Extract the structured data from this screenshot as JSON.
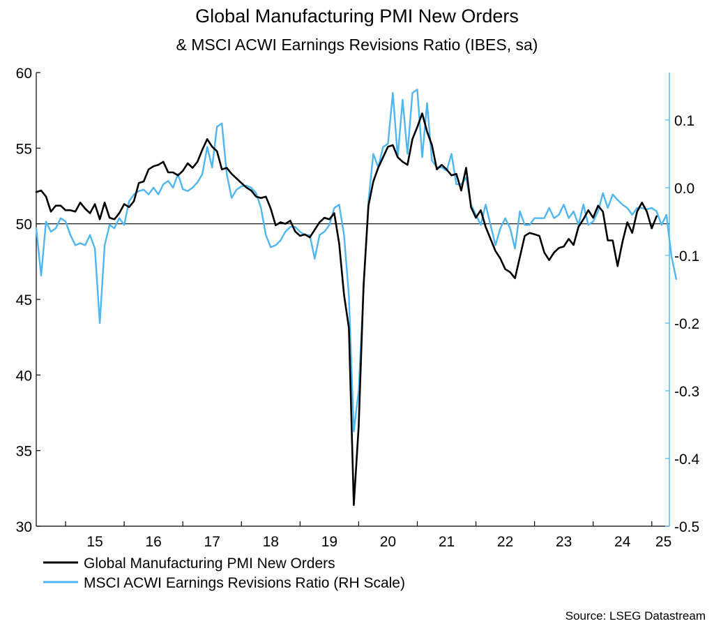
{
  "chart_data": {
    "type": "line",
    "title": "Global Manufacturing PMI New Orders",
    "subtitle": "& MSCI ACWI Earnings Revisions Ratio (IBES, sa)",
    "source": "Source: LSEG Datastream",
    "x_range": [
      2014.5,
      2025.3
    ],
    "x_ticks": [
      {
        "label": "15",
        "x": 2015.5
      },
      {
        "label": "16",
        "x": 2016.5
      },
      {
        "label": "17",
        "x": 2017.5
      },
      {
        "label": "18",
        "x": 2018.5
      },
      {
        "label": "19",
        "x": 2019.5
      },
      {
        "label": "20",
        "x": 2020.5
      },
      {
        "label": "21",
        "x": 2021.5
      },
      {
        "label": "22",
        "x": 2022.5
      },
      {
        "label": "23",
        "x": 2023.5
      },
      {
        "label": "24",
        "x": 2024.5
      },
      {
        "label": "25",
        "x": 2025.2
      }
    ],
    "x_boundaries": [
      2015,
      2016,
      2017,
      2018,
      2019,
      2020,
      2021,
      2022,
      2023,
      2024,
      2025
    ],
    "y_left": {
      "min": 30,
      "max": 60,
      "ticks": [
        "30",
        "35",
        "40",
        "45",
        "50",
        "55",
        "60"
      ]
    },
    "y_right": {
      "min": -0.5,
      "max": 0.17,
      "ticks": [
        "-0.5",
        "-0.4",
        "-0.3",
        "-0.2",
        "-0.1",
        "0.0",
        "0.1"
      ],
      "tick_values": [
        -0.5,
        -0.4,
        -0.3,
        -0.2,
        -0.1,
        0.0,
        0.1
      ]
    },
    "reference_line": 50,
    "series": [
      {
        "name": "Global Manufacturing PMI New Orders",
        "axis": "left",
        "color": "#000000",
        "start": 2014.5,
        "step": 0.08333,
        "values": [
          52.1,
          52.2,
          51.8,
          50.8,
          51.2,
          51.2,
          50.9,
          50.9,
          50.8,
          51.4,
          51.0,
          50.7,
          51.3,
          50.3,
          51.4,
          50.4,
          50.3,
          50.7,
          51.3,
          51.1,
          51.5,
          52.7,
          52.8,
          53.6,
          53.8,
          53.9,
          54.1,
          53.4,
          53.4,
          53.2,
          53.5,
          54.0,
          53.7,
          54.1,
          54.9,
          55.6,
          55.1,
          54.8,
          53.6,
          53.7,
          53.3,
          53.0,
          52.7,
          52.4,
          52.2,
          51.8,
          51.7,
          51.8,
          51.0,
          49.9,
          50.1,
          50.0,
          50.2,
          49.5,
          49.2,
          49.3,
          49.1,
          49.6,
          50.1,
          50.4,
          50.3,
          50.7,
          48.7,
          45.3,
          43.1,
          31.4,
          36.6,
          45.9,
          51.2,
          52.8,
          53.7,
          54.4,
          55.1,
          55.2,
          54.4,
          54.1,
          53.9,
          55.6,
          56.4,
          57.3,
          56.1,
          55.2,
          53.6,
          53.9,
          53.6,
          53.2,
          53.3,
          52.2,
          53.7,
          51.1,
          50.4,
          50.9,
          49.8,
          49.0,
          48.2,
          47.7,
          47.0,
          46.8,
          46.4,
          47.8,
          49.2,
          49.4,
          49.3,
          49.2,
          48.1,
          47.6,
          48.1,
          48.4,
          48.5,
          49.0,
          48.6,
          49.8,
          50.3,
          50.9,
          50.4,
          51.2,
          50.8,
          48.9,
          48.9,
          47.2,
          48.8,
          50.1,
          49.4,
          50.8,
          51.4,
          50.8,
          49.7,
          50.5
        ]
      },
      {
        "name": "MSCI ACWI Earnings Revisions Ratio (RH Scale)",
        "axis": "right",
        "color": "#4fb6f0",
        "start": 2014.5,
        "step": 0.08333,
        "values": [
          -0.06,
          -0.13,
          -0.05,
          -0.065,
          -0.06,
          -0.045,
          -0.05,
          -0.07,
          -0.085,
          -0.082,
          -0.085,
          -0.07,
          -0.09,
          -0.2,
          -0.085,
          -0.055,
          -0.06,
          -0.045,
          -0.055,
          -0.02,
          -0.01,
          -0.005,
          -0.003,
          -0.01,
          0.0,
          -0.01,
          0.005,
          0.01,
          0.0,
          0.02,
          -0.002,
          -0.005,
          0.0,
          0.008,
          0.02,
          0.06,
          0.03,
          0.09,
          0.095,
          0.02,
          -0.015,
          -0.003,
          0.002,
          0.003,
          0.0,
          -0.008,
          -0.03,
          -0.07,
          -0.088,
          -0.085,
          -0.078,
          -0.065,
          -0.058,
          -0.058,
          -0.065,
          -0.07,
          -0.07,
          -0.105,
          -0.07,
          -0.065,
          -0.055,
          -0.03,
          -0.025,
          -0.07,
          -0.16,
          -0.36,
          -0.3,
          -0.15,
          -0.02,
          0.05,
          0.03,
          0.06,
          0.065,
          0.14,
          0.045,
          0.13,
          0.05,
          0.14,
          0.145,
          0.045,
          0.125,
          0.04,
          0.03,
          0.03,
          0.025,
          0.05,
          0.005,
          0.005,
          0.015,
          -0.025,
          -0.04,
          -0.055,
          -0.025,
          -0.055,
          -0.085,
          -0.06,
          -0.045,
          -0.06,
          -0.09,
          -0.035,
          -0.055,
          -0.055,
          -0.045,
          -0.045,
          -0.045,
          -0.03,
          -0.045,
          -0.04,
          -0.025,
          -0.045,
          -0.035,
          -0.055,
          -0.025,
          -0.055,
          -0.05,
          -0.035,
          -0.008,
          -0.03,
          -0.01,
          -0.018,
          -0.025,
          -0.03,
          -0.04,
          -0.03,
          -0.03,
          -0.032,
          -0.03,
          -0.035,
          -0.055,
          -0.04,
          -0.1,
          -0.135
        ]
      }
    ],
    "legend": [
      {
        "label": "Global Manufacturing PMI New Orders",
        "color": "#000000"
      },
      {
        "label": "MSCI ACWI Earnings Revisions Ratio (RH Scale)",
        "color": "#4fb6f0"
      }
    ]
  }
}
